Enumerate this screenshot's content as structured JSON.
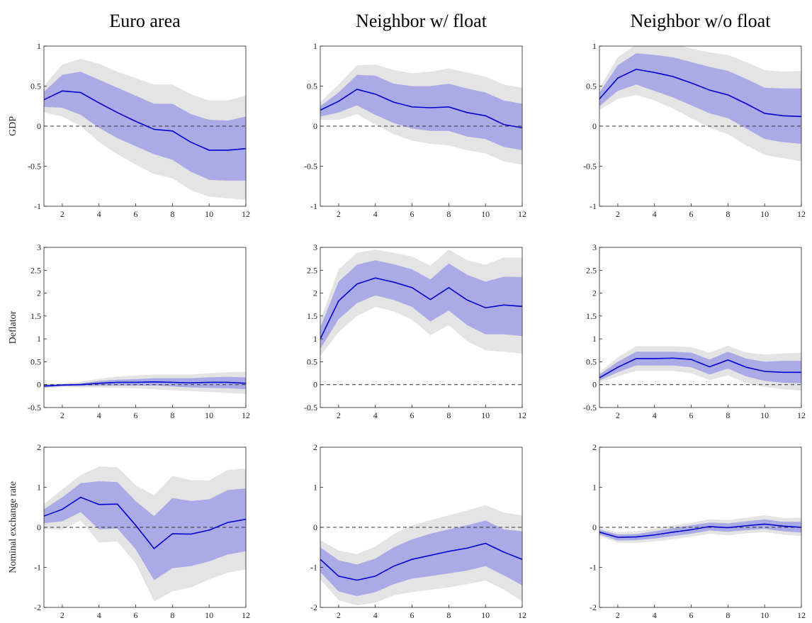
{
  "chart_data": [
    {
      "type": "line",
      "title": "Euro area",
      "ylabel": "GDP",
      "x": [
        1,
        2,
        3,
        4,
        5,
        6,
        7,
        8,
        9,
        10,
        11,
        12
      ],
      "values": [
        0.33,
        0.44,
        0.42,
        0.29,
        0.17,
        0.06,
        -0.04,
        -0.06,
        -0.2,
        -0.3,
        -0.3,
        -0.28
      ],
      "band_inner": {
        "lower": [
          0.24,
          0.23,
          0.14,
          -0.02,
          -0.15,
          -0.25,
          -0.35,
          -0.42,
          -0.57,
          -0.67,
          -0.68,
          -0.68
        ],
        "upper": [
          0.43,
          0.64,
          0.68,
          0.58,
          0.48,
          0.38,
          0.28,
          0.28,
          0.15,
          0.08,
          0.07,
          0.12
        ]
      },
      "band_outer": {
        "lower": [
          0.17,
          0.12,
          0.0,
          -0.2,
          -0.35,
          -0.48,
          -0.6,
          -0.65,
          -0.8,
          -0.88,
          -0.9,
          -0.92
        ],
        "upper": [
          0.5,
          0.77,
          0.84,
          0.78,
          0.68,
          0.6,
          0.52,
          0.52,
          0.4,
          0.32,
          0.32,
          0.38
        ]
      },
      "xlim": [
        1,
        12
      ],
      "xticks": [
        2,
        4,
        6,
        8,
        10,
        12
      ],
      "ylim": [
        -1,
        1
      ],
      "yticks": [
        -1,
        -0.5,
        0,
        0.5,
        1
      ],
      "hline": 0,
      "color": "#0000d0",
      "inner_color": "#aaaae6",
      "outer_color": "#e4e4e4"
    },
    {
      "type": "line",
      "title": "Neighbor w/ float",
      "x": [
        1,
        2,
        3,
        4,
        5,
        6,
        7,
        8,
        9,
        10,
        11,
        12
      ],
      "values": [
        0.2,
        0.31,
        0.46,
        0.4,
        0.3,
        0.24,
        0.23,
        0.24,
        0.17,
        0.13,
        0.02,
        -0.02
      ],
      "band_inner": {
        "lower": [
          0.12,
          0.17,
          0.26,
          0.14,
          0.04,
          -0.03,
          -0.06,
          -0.06,
          -0.13,
          -0.16,
          -0.26,
          -0.3
        ],
        "upper": [
          0.25,
          0.42,
          0.64,
          0.63,
          0.53,
          0.5,
          0.5,
          0.53,
          0.47,
          0.42,
          0.32,
          0.28
        ]
      },
      "band_outer": {
        "lower": [
          0.08,
          0.08,
          0.15,
          0.02,
          -0.1,
          -0.18,
          -0.22,
          -0.24,
          -0.3,
          -0.34,
          -0.44,
          -0.48
        ],
        "upper": [
          0.3,
          0.52,
          0.76,
          0.77,
          0.7,
          0.66,
          0.68,
          0.72,
          0.67,
          0.62,
          0.52,
          0.48
        ]
      },
      "xlim": [
        1,
        12
      ],
      "xticks": [
        2,
        4,
        6,
        8,
        10,
        12
      ],
      "ylim": [
        -1,
        1
      ],
      "yticks": [
        -1,
        -0.5,
        0,
        0.5,
        1
      ],
      "hline": 0,
      "color": "#0000d0",
      "inner_color": "#aaaae6",
      "outer_color": "#e4e4e4"
    },
    {
      "type": "line",
      "title": "Neighbor w/o float",
      "x": [
        1,
        2,
        3,
        4,
        5,
        6,
        7,
        8,
        9,
        10,
        11,
        12
      ],
      "values": [
        0.34,
        0.6,
        0.71,
        0.67,
        0.62,
        0.54,
        0.45,
        0.39,
        0.28,
        0.16,
        0.13,
        0.12
      ],
      "band_inner": {
        "lower": [
          0.25,
          0.44,
          0.52,
          0.44,
          0.36,
          0.26,
          0.16,
          0.1,
          -0.03,
          -0.16,
          -0.2,
          -0.22
        ],
        "upper": [
          0.42,
          0.76,
          0.91,
          0.89,
          0.86,
          0.8,
          0.74,
          0.69,
          0.59,
          0.48,
          0.47,
          0.47
        ]
      },
      "band_outer": {
        "lower": [
          0.2,
          0.34,
          0.39,
          0.32,
          0.22,
          0.1,
          -0.02,
          -0.1,
          -0.24,
          -0.36,
          -0.4,
          -0.44
        ],
        "upper": [
          0.48,
          0.86,
          1.02,
          1.04,
          1.03,
          0.97,
          0.92,
          0.89,
          0.8,
          0.7,
          0.68,
          0.69
        ]
      },
      "xlim": [
        1,
        12
      ],
      "xticks": [
        2,
        4,
        6,
        8,
        10,
        12
      ],
      "ylim": [
        -1,
        1
      ],
      "yticks": [
        -1,
        -0.5,
        0,
        0.5,
        1
      ],
      "hline": 0,
      "color": "#0000d0",
      "inner_color": "#aaaae6",
      "outer_color": "#e4e4e4"
    },
    {
      "type": "line",
      "ylabel": "Deflator",
      "x": [
        1,
        2,
        3,
        4,
        5,
        6,
        7,
        8,
        9,
        10,
        11,
        12
      ],
      "values": [
        -0.03,
        -0.01,
        0.0,
        0.03,
        0.05,
        0.05,
        0.06,
        0.05,
        0.04,
        0.05,
        0.05,
        0.03
      ],
      "band_inner": {
        "lower": [
          -0.06,
          -0.03,
          -0.03,
          -0.02,
          -0.02,
          -0.02,
          -0.02,
          -0.04,
          -0.06,
          -0.07,
          -0.08,
          -0.1
        ],
        "upper": [
          0.0,
          0.01,
          0.03,
          0.08,
          0.11,
          0.12,
          0.14,
          0.14,
          0.14,
          0.16,
          0.17,
          0.16
        ]
      },
      "band_outer": {
        "lower": [
          -0.08,
          -0.05,
          -0.06,
          -0.06,
          -0.07,
          -0.08,
          -0.1,
          -0.12,
          -0.14,
          -0.16,
          -0.18,
          -0.2
        ],
        "upper": [
          0.02,
          0.03,
          0.06,
          0.13,
          0.18,
          0.2,
          0.22,
          0.22,
          0.22,
          0.25,
          0.27,
          0.28
        ]
      },
      "xlim": [
        1,
        12
      ],
      "xticks": [
        2,
        4,
        6,
        8,
        10,
        12
      ],
      "ylim": [
        -0.5,
        3
      ],
      "yticks": [
        -0.5,
        0,
        0.5,
        1,
        1.5,
        2,
        2.5,
        3
      ],
      "hline": 0,
      "color": "#0000d0",
      "inner_color": "#aaaae6",
      "outer_color": "#e4e4e4"
    },
    {
      "type": "line",
      "x": [
        1,
        2,
        3,
        4,
        5,
        6,
        7,
        8,
        9,
        10,
        11,
        12
      ],
      "values": [
        1.0,
        1.83,
        2.2,
        2.33,
        2.24,
        2.12,
        1.86,
        2.12,
        1.85,
        1.68,
        1.74,
        1.71
      ],
      "band_inner": {
        "lower": [
          0.78,
          1.43,
          1.78,
          1.95,
          1.85,
          1.7,
          1.38,
          1.62,
          1.3,
          1.1,
          1.1,
          1.06
        ],
        "upper": [
          1.25,
          2.25,
          2.62,
          2.72,
          2.63,
          2.52,
          2.3,
          2.65,
          2.4,
          2.25,
          2.36,
          2.35
        ]
      },
      "band_outer": {
        "lower": [
          0.62,
          1.15,
          1.5,
          1.7,
          1.6,
          1.42,
          1.08,
          1.3,
          0.95,
          0.75,
          0.72,
          0.68
        ],
        "upper": [
          1.4,
          2.52,
          2.88,
          2.95,
          2.88,
          2.8,
          2.6,
          2.95,
          2.72,
          2.62,
          2.78,
          2.78
        ]
      },
      "xlim": [
        1,
        12
      ],
      "xticks": [
        2,
        4,
        6,
        8,
        10,
        12
      ],
      "ylim": [
        -0.5,
        3
      ],
      "yticks": [
        -0.5,
        0,
        0.5,
        1,
        1.5,
        2,
        2.5,
        3
      ],
      "hline": 0,
      "color": "#0000d0",
      "inner_color": "#aaaae6",
      "outer_color": "#e4e4e4"
    },
    {
      "type": "line",
      "x": [
        1,
        2,
        3,
        4,
        5,
        6,
        7,
        8,
        9,
        10,
        11,
        12
      ],
      "values": [
        0.15,
        0.38,
        0.57,
        0.57,
        0.58,
        0.55,
        0.39,
        0.54,
        0.38,
        0.29,
        0.27,
        0.27
      ],
      "band_inner": {
        "lower": [
          0.09,
          0.27,
          0.42,
          0.42,
          0.42,
          0.38,
          0.22,
          0.35,
          0.18,
          0.08,
          0.04,
          0.03
        ],
        "upper": [
          0.22,
          0.5,
          0.72,
          0.72,
          0.72,
          0.7,
          0.55,
          0.72,
          0.57,
          0.5,
          0.52,
          0.52
        ]
      },
      "band_outer": {
        "lower": [
          0.05,
          0.18,
          0.3,
          0.3,
          0.3,
          0.25,
          0.1,
          0.2,
          0.04,
          -0.05,
          -0.1,
          -0.13
        ],
        "upper": [
          0.27,
          0.6,
          0.84,
          0.84,
          0.84,
          0.82,
          0.7,
          0.85,
          0.7,
          0.66,
          0.68,
          0.7
        ]
      },
      "xlim": [
        1,
        12
      ],
      "xticks": [
        2,
        4,
        6,
        8,
        10,
        12
      ],
      "ylim": [
        -0.5,
        3
      ],
      "yticks": [
        -0.5,
        0,
        0.5,
        1,
        1.5,
        2,
        2.5,
        3
      ],
      "hline": 0,
      "color": "#0000d0",
      "inner_color": "#aaaae6",
      "outer_color": "#e4e4e4"
    },
    {
      "type": "line",
      "ylabel": "Nominal exchange rate",
      "x": [
        1,
        2,
        3,
        4,
        5,
        6,
        7,
        8,
        9,
        10,
        11,
        12
      ],
      "values": [
        0.28,
        0.45,
        0.75,
        0.57,
        0.58,
        0.05,
        -0.53,
        -0.16,
        -0.17,
        -0.07,
        0.12,
        0.2
      ],
      "band_inner": {
        "lower": [
          0.1,
          0.15,
          0.38,
          -0.05,
          -0.03,
          -0.55,
          -1.32,
          -1.02,
          -0.97,
          -0.85,
          -0.68,
          -0.6
        ],
        "upper": [
          0.45,
          0.75,
          1.1,
          1.15,
          1.13,
          0.65,
          0.28,
          0.73,
          0.66,
          0.7,
          0.93,
          0.97
        ]
      },
      "band_outer": {
        "lower": [
          -0.05,
          -0.05,
          0.17,
          -0.38,
          -0.35,
          -0.9,
          -1.85,
          -1.6,
          -1.5,
          -1.3,
          -1.13,
          -1.05
        ],
        "upper": [
          0.57,
          0.95,
          1.3,
          1.52,
          1.5,
          1.05,
          0.8,
          1.28,
          1.18,
          1.17,
          1.43,
          1.47
        ]
      },
      "xlim": [
        1,
        12
      ],
      "xticks": [
        2,
        4,
        6,
        8,
        10,
        12
      ],
      "ylim": [
        -2,
        2
      ],
      "yticks": [
        -2,
        -1,
        0,
        1,
        2
      ],
      "hline": 0,
      "color": "#0000d0",
      "inner_color": "#aaaae6",
      "outer_color": "#e4e4e4"
    },
    {
      "type": "line",
      "x": [
        1,
        2,
        3,
        4,
        5,
        6,
        7,
        8,
        9,
        10,
        11,
        12
      ],
      "values": [
        -0.8,
        -1.22,
        -1.32,
        -1.22,
        -0.97,
        -0.8,
        -0.7,
        -0.6,
        -0.52,
        -0.4,
        -0.62,
        -0.8
      ],
      "band_inner": {
        "lower": [
          -1.12,
          -1.6,
          -1.72,
          -1.62,
          -1.42,
          -1.28,
          -1.22,
          -1.15,
          -1.08,
          -0.97,
          -1.2,
          -1.45
        ],
        "upper": [
          -0.5,
          -0.82,
          -0.93,
          -0.78,
          -0.5,
          -0.3,
          -0.16,
          -0.05,
          0.05,
          0.17,
          -0.05,
          -0.1
        ]
      },
      "band_outer": {
        "lower": [
          -1.3,
          -1.82,
          -1.95,
          -1.88,
          -1.7,
          -1.62,
          -1.56,
          -1.5,
          -1.42,
          -1.33,
          -1.55,
          -1.85
        ],
        "upper": [
          -0.32,
          -0.58,
          -0.67,
          -0.48,
          -0.17,
          0.05,
          0.18,
          0.3,
          0.42,
          0.55,
          0.37,
          0.3
        ]
      },
      "xlim": [
        1,
        12
      ],
      "xticks": [
        2,
        4,
        6,
        8,
        10,
        12
      ],
      "ylim": [
        -2,
        2
      ],
      "yticks": [
        -2,
        -1,
        0,
        1,
        2
      ],
      "hline": 0,
      "color": "#0000d0",
      "inner_color": "#aaaae6",
      "outer_color": "#e4e4e4"
    },
    {
      "type": "line",
      "x": [
        1,
        2,
        3,
        4,
        5,
        6,
        7,
        8,
        9,
        10,
        11,
        12
      ],
      "values": [
        -0.12,
        -0.25,
        -0.24,
        -0.19,
        -0.12,
        -0.06,
        0.02,
        -0.01,
        0.04,
        0.08,
        0.03,
        0.0
      ],
      "band_inner": {
        "lower": [
          -0.18,
          -0.33,
          -0.32,
          -0.28,
          -0.22,
          -0.16,
          -0.08,
          -0.11,
          -0.07,
          -0.04,
          -0.1,
          -0.13
        ],
        "upper": [
          -0.06,
          -0.18,
          -0.17,
          -0.1,
          -0.02,
          0.05,
          0.12,
          0.1,
          0.15,
          0.2,
          0.14,
          0.14
        ]
      },
      "band_outer": {
        "lower": [
          -0.22,
          -0.38,
          -0.39,
          -0.35,
          -0.3,
          -0.24,
          -0.16,
          -0.2,
          -0.15,
          -0.12,
          -0.18,
          -0.22
        ],
        "upper": [
          -0.02,
          -0.12,
          -0.1,
          -0.03,
          0.05,
          0.12,
          0.2,
          0.18,
          0.24,
          0.3,
          0.23,
          0.24
        ]
      },
      "xlim": [
        1,
        12
      ],
      "xticks": [
        2,
        4,
        6,
        8,
        10,
        12
      ],
      "ylim": [
        -2,
        2
      ],
      "yticks": [
        -2,
        -1,
        0,
        1,
        2
      ],
      "hline": 0,
      "color": "#0000d0",
      "inner_color": "#aaaae6",
      "outer_color": "#e4e4e4"
    }
  ]
}
